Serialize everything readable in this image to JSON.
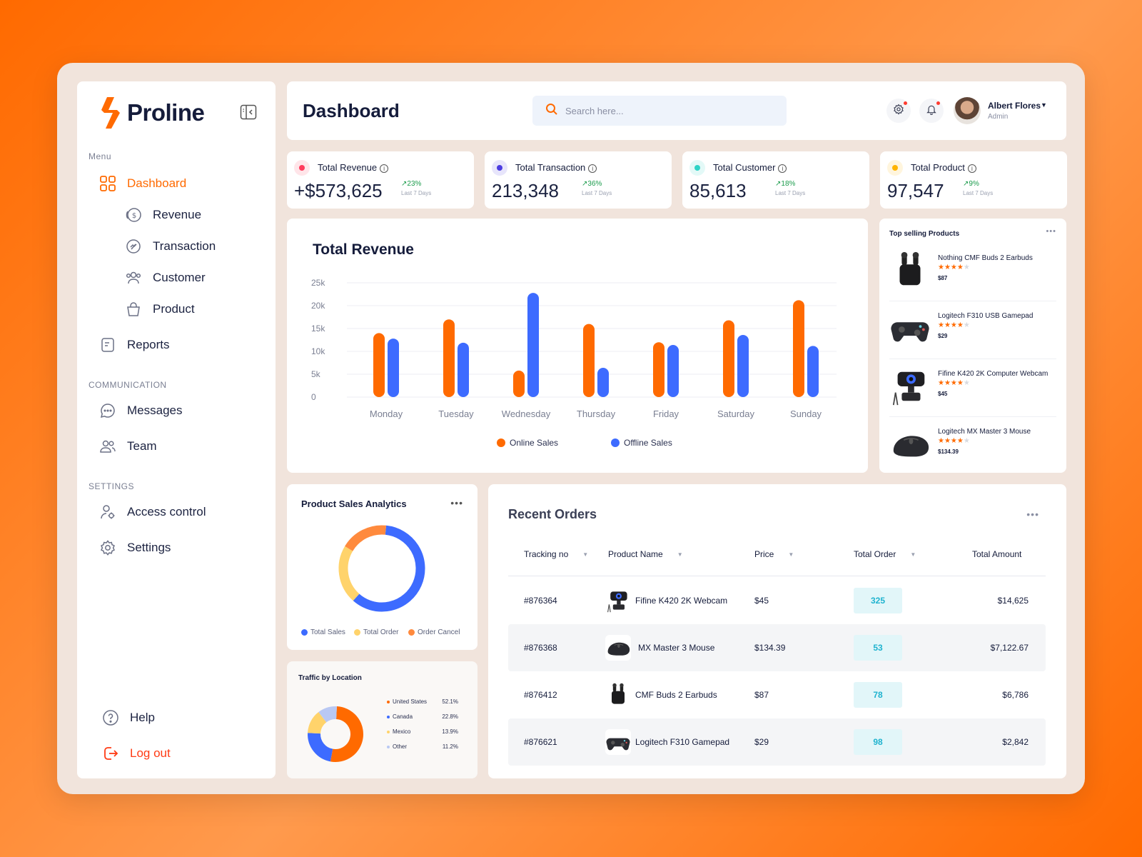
{
  "app": {
    "name": "Proline"
  },
  "sidebar": {
    "menu_label": "Menu",
    "items": [
      {
        "label": "Dashboard",
        "icon": "grid-icon",
        "active": true
      },
      {
        "label": "Revenue",
        "icon": "coin-icon"
      },
      {
        "label": "Transaction",
        "icon": "transaction-icon"
      },
      {
        "label": "Customer",
        "icon": "users-icon"
      },
      {
        "label": "Product",
        "icon": "bag-icon"
      },
      {
        "label": "Reports",
        "icon": "report-icon"
      }
    ],
    "communication_label": "COMMUNICATION",
    "communication": [
      {
        "label": "Messages",
        "icon": "chat-icon"
      },
      {
        "label": "Team",
        "icon": "team-icon"
      }
    ],
    "settings_label": "SETTINGS",
    "settings": [
      {
        "label": "Access control",
        "icon": "user-gear-icon"
      },
      {
        "label": "Settings",
        "icon": "gear-icon"
      }
    ],
    "help_label": "Help",
    "logout_label": "Log out"
  },
  "header": {
    "title": "Dashboard",
    "search_placeholder": "Search here...",
    "user": {
      "name": "Albert Flores",
      "role": "Admin"
    }
  },
  "stats": [
    {
      "title": "Total Revenue",
      "value": "+$573,625",
      "change": "23%",
      "period": "Last 7 Days",
      "color": "#ff3b5c"
    },
    {
      "title": "Total Transaction",
      "value": "213,348",
      "change": "36%",
      "period": "Last 7 Days",
      "color": "#4b3ce0"
    },
    {
      "title": "Total Customer",
      "value": "85,613",
      "change": "18%",
      "period": "Last 7 Days",
      "color": "#2ed3c6"
    },
    {
      "title": "Total Product",
      "value": "97,547",
      "change": "9%",
      "period": "Last 7 Days",
      "color": "#ffb400"
    }
  ],
  "revenue_chart": {
    "title": "Total Revenue",
    "legend": [
      "Online Sales",
      "Offline Sales"
    ]
  },
  "chart_data": {
    "type": "bar",
    "title": "Total Revenue",
    "categories": [
      "Monday",
      "Tuesday",
      "Wednesday",
      "Thursday",
      "Friday",
      "Saturday",
      "Sunday"
    ],
    "series": [
      {
        "name": "Online Sales",
        "color": "#ff6a00",
        "values": [
          14000,
          17000,
          5800,
          16000,
          12000,
          16800,
          21200
        ]
      },
      {
        "name": "Offline Sales",
        "color": "#3d6bff",
        "values": [
          12800,
          11900,
          22800,
          6400,
          11400,
          13600,
          11200
        ]
      }
    ],
    "y_ticks": [
      "0",
      "5k",
      "10k",
      "15k",
      "20k",
      "25k"
    ],
    "ylim": [
      0,
      25000
    ],
    "grid": true,
    "legend_position": "bottom"
  },
  "top_selling": {
    "title": "Top selling Products",
    "products": [
      {
        "name": "Nothing CMF Buds 2 Earbuds",
        "rating": 4,
        "price": "$87",
        "icon": "earbuds-icon"
      },
      {
        "name": "Logitech F310 USB Gamepad",
        "rating": 4,
        "price": "$29",
        "icon": "gamepad-icon"
      },
      {
        "name": "Fifine K420 2K Computer Webcam",
        "rating": 4,
        "price": "$45",
        "icon": "webcam-icon"
      },
      {
        "name": "Logitech MX Master 3 Mouse",
        "rating": 4,
        "price": "$134.39",
        "icon": "mouse-icon"
      }
    ]
  },
  "product_sales": {
    "title": "Product Sales Analytics",
    "legend": [
      "Total Sales",
      "Total Order",
      "Order Cancel"
    ],
    "colors": [
      "#3d6bff",
      "#ffd36b",
      "#ff8a3d"
    ],
    "shares": [
      0.6,
      0.22,
      0.18
    ]
  },
  "traffic": {
    "title": "Traffic by Location",
    "rows": [
      {
        "label": "United States",
        "pct": "52.1%",
        "value": 52.1,
        "color": "#ff6a00"
      },
      {
        "label": "Canada",
        "pct": "22.8%",
        "value": 22.8,
        "color": "#3d6bff"
      },
      {
        "label": "Mexico",
        "pct": "13.9%",
        "value": 13.9,
        "color": "#ffd36b"
      },
      {
        "label": "Other",
        "pct": "11.2%",
        "value": 11.2,
        "color": "#b9c8f3"
      }
    ]
  },
  "orders": {
    "title": "Recent Orders",
    "columns": [
      "Tracking no",
      "Product Name",
      "Price",
      "Total Order",
      "Total Amount"
    ],
    "rows": [
      {
        "tracking": "#876364",
        "product": "Fifine K420 2K Webcam",
        "price": "$45",
        "qty": "325",
        "amount": "$14,625",
        "icon": "webcam-icon"
      },
      {
        "tracking": "#876368",
        "product": "MX Master 3 Mouse",
        "price": "$134.39",
        "qty": "53",
        "amount": "$7,122.67",
        "icon": "mouse-icon"
      },
      {
        "tracking": "#876412",
        "product": "CMF Buds 2 Earbuds",
        "price": "$87",
        "qty": "78",
        "amount": "$6,786",
        "icon": "earbuds-icon"
      },
      {
        "tracking": "#876621",
        "product": "Logitech F310 Gamepad",
        "price": "$29",
        "qty": "98",
        "amount": "$2,842",
        "icon": "gamepad-icon"
      }
    ]
  }
}
